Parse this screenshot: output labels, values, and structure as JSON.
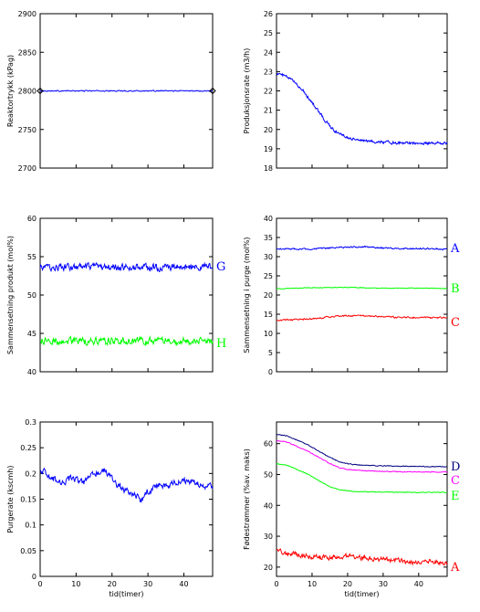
{
  "chart_data": [
    {
      "type": "line",
      "xlabel": "",
      "ylabel": "Reaktortrykk (kPag)",
      "xlim": [
        0,
        48
      ],
      "ylim": [
        2700,
        2900
      ],
      "yticks": [
        2700,
        2750,
        2800,
        2850,
        2900
      ],
      "xticks": [],
      "series": [
        {
          "color": "#0000ff",
          "x": [
            0,
            48
          ],
          "y": [
            2800,
            2800
          ],
          "noise": 1.0,
          "marker": "diamond-edges"
        }
      ]
    },
    {
      "type": "line",
      "xlabel": "",
      "ylabel": "Produksjonsrate (m3/h)",
      "xlim": [
        0,
        48
      ],
      "ylim": [
        18,
        26
      ],
      "yticks": [
        18,
        19,
        20,
        21,
        22,
        23,
        24,
        25,
        26
      ],
      "xticks": [],
      "series": [
        {
          "color": "#0000ff",
          "x": [
            0,
            2,
            4,
            6,
            8,
            10,
            12,
            14,
            16,
            18,
            20,
            22,
            25,
            30,
            35,
            40,
            45,
            48
          ],
          "y": [
            22.9,
            22.8,
            22.6,
            22.3,
            21.9,
            21.4,
            20.9,
            20.4,
            20.0,
            19.75,
            19.6,
            19.5,
            19.4,
            19.35,
            19.3,
            19.3,
            19.3,
            19.3
          ],
          "noise": 0.12
        }
      ]
    },
    {
      "type": "line",
      "xlabel": "",
      "ylabel": "Sammensetning produkt (mol%)",
      "xlim": [
        0,
        48
      ],
      "ylim": [
        40,
        60
      ],
      "yticks": [
        40,
        45,
        50,
        55,
        60
      ],
      "xticks": [],
      "series": [
        {
          "name": "G",
          "color": "#0000ff",
          "x": [
            0,
            48
          ],
          "y": [
            53.6,
            53.6
          ],
          "noise": 0.7
        },
        {
          "name": "H",
          "color": "#00ff00",
          "x": [
            0,
            48
          ],
          "y": [
            44.0,
            44.0
          ],
          "noise": 0.75
        }
      ]
    },
    {
      "type": "line",
      "xlabel": "",
      "ylabel": "Sammensetning i purge (mol%)",
      "xlim": [
        0,
        48
      ],
      "ylim": [
        0,
        40
      ],
      "yticks": [
        0,
        5,
        10,
        15,
        20,
        25,
        30,
        35,
        40
      ],
      "xticks": [],
      "series": [
        {
          "name": "A",
          "color": "#0000ff",
          "x": [
            0,
            10,
            20,
            25,
            30,
            40,
            48
          ],
          "y": [
            32.0,
            32.0,
            32.5,
            32.6,
            32.2,
            32.1,
            32.0
          ],
          "noise": 0.3
        },
        {
          "name": "B",
          "color": "#00ff00",
          "x": [
            0,
            10,
            20,
            30,
            40,
            48
          ],
          "y": [
            21.6,
            21.9,
            22.0,
            21.8,
            21.8,
            21.7
          ],
          "noise": 0.15
        },
        {
          "name": "C",
          "color": "#ff0000",
          "x": [
            0,
            5,
            10,
            15,
            20,
            25,
            30,
            35,
            40,
            48
          ],
          "y": [
            13.3,
            13.6,
            13.8,
            14.3,
            14.6,
            14.6,
            14.3,
            14.2,
            14.1,
            14.1
          ],
          "noise": 0.3
        }
      ]
    },
    {
      "type": "line",
      "xlabel": "tid(timer)",
      "ylabel": "Purgerate (kscmh)",
      "xlim": [
        0,
        48
      ],
      "ylim": [
        0,
        0.3
      ],
      "yticks": [
        0,
        0.05,
        0.1,
        0.15,
        0.2,
        0.25,
        0.3
      ],
      "xticks": [
        0,
        10,
        20,
        30,
        40
      ],
      "series": [
        {
          "color": "#0000ff",
          "x": [
            0,
            3,
            6,
            9,
            12,
            15,
            18,
            21,
            24,
            27,
            28,
            30,
            33,
            36,
            40,
            44,
            48
          ],
          "y": [
            0.21,
            0.19,
            0.185,
            0.19,
            0.18,
            0.2,
            0.205,
            0.18,
            0.165,
            0.155,
            0.145,
            0.165,
            0.175,
            0.18,
            0.185,
            0.18,
            0.175
          ],
          "noise": 0.01
        }
      ]
    },
    {
      "type": "line",
      "xlabel": "tid(timer)",
      "ylabel": "Fødestrømmer (%av. maks)",
      "xlim": [
        0,
        48
      ],
      "ylim": [
        17,
        67
      ],
      "yticks": [
        20,
        30,
        40,
        50,
        60
      ],
      "xticks": [
        0,
        10,
        20,
        30,
        40
      ],
      "series": [
        {
          "name": "D",
          "color": "#000080",
          "x": [
            0,
            3,
            6,
            9,
            12,
            15,
            18,
            21,
            25,
            30,
            40,
            48
          ],
          "y": [
            63.0,
            62.5,
            61.0,
            59.5,
            57.5,
            55.5,
            54.0,
            53.3,
            53.0,
            52.8,
            52.6,
            52.5
          ],
          "noise": 0.2
        },
        {
          "name": "C",
          "color": "#ff00ff",
          "x": [
            0,
            3,
            6,
            9,
            12,
            15,
            18,
            21,
            25,
            30,
            40,
            48
          ],
          "y": [
            61.0,
            60.5,
            59.0,
            57.5,
            55.5,
            53.5,
            52.0,
            51.5,
            51.2,
            51.0,
            50.8,
            50.8
          ],
          "noise": 0.2
        },
        {
          "name": "E",
          "color": "#00ff00",
          "x": [
            0,
            3,
            6,
            9,
            12,
            15,
            18,
            21,
            25,
            30,
            40,
            48
          ],
          "y": [
            53.5,
            53.0,
            51.5,
            50.0,
            48.0,
            46.0,
            45.0,
            44.6,
            44.4,
            44.3,
            44.2,
            44.2
          ],
          "noise": 0.2
        },
        {
          "name": "A",
          "color": "#ff0000",
          "x": [
            0,
            3,
            6,
            10,
            15,
            20,
            25,
            30,
            35,
            40,
            44,
            48
          ],
          "y": [
            25.5,
            24.5,
            24.0,
            23.5,
            23.0,
            23.5,
            23.0,
            22.5,
            22.0,
            21.5,
            22.0,
            21.0
          ],
          "noise": 1.2
        }
      ]
    }
  ]
}
